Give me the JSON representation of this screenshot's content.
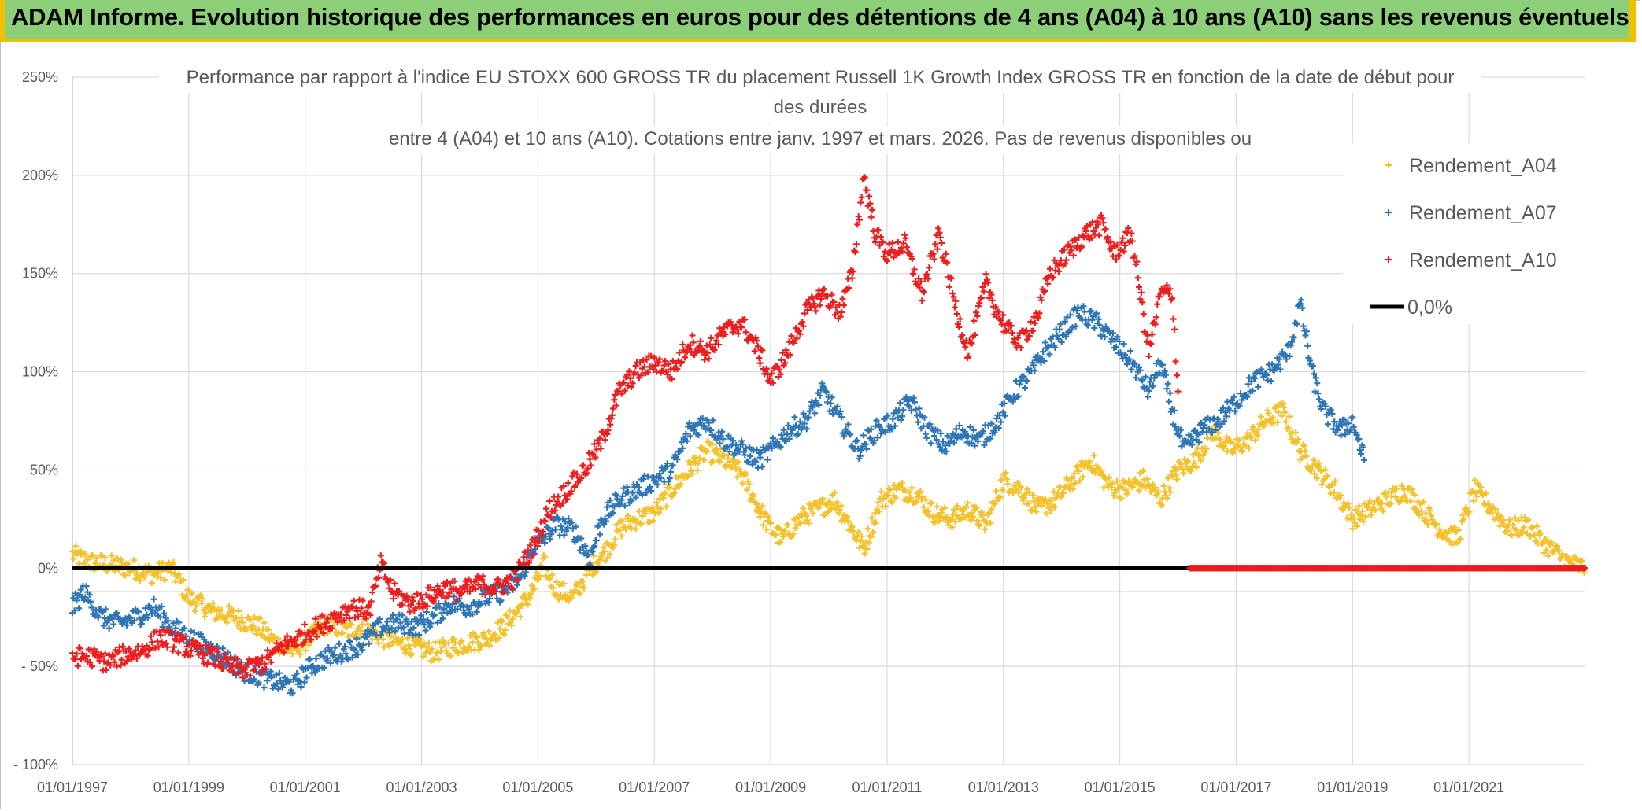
{
  "banner": {
    "title": "ADAM Informe. Evolution historique des performances en euros pour des détentions de 4 ans (A04) à 10 ans (A10) sans les revenus éventuels"
  },
  "chart_data": {
    "type": "scatter",
    "title_lines": [
      "Performance par rapport à l'indice EU STOXX 600 GROSS TR  du placement Russell 1K Growth Index GROSS TR en fonction de la date de début pour",
      "des durées",
      "entre 4 (A04) et 10 ans (A10). Cotations entre janv. 1997 et mars. 2026. Pas de revenus disponibles ou"
    ],
    "xlabel": "",
    "ylabel": "",
    "xlim": [
      1997.0,
      2023.0
    ],
    "ylim": [
      -100,
      250
    ],
    "x_tick_labels": [
      "01/01/1997",
      "01/01/1999",
      "01/01/2001",
      "01/01/2003",
      "01/01/2005",
      "01/01/2007",
      "01/01/2009",
      "01/01/2011",
      "01/01/2013",
      "01/01/2015",
      "01/01/2017",
      "01/01/2019",
      "01/01/2021"
    ],
    "x_tick_values": [
      1997,
      1999,
      2001,
      2003,
      2005,
      2007,
      2009,
      2011,
      2013,
      2015,
      2017,
      2019,
      2021
    ],
    "y_tick_labels": [
      "250%",
      "200%",
      "150%",
      "100%",
      "50%",
      "0%",
      "- 50%",
      "- 100%"
    ],
    "y_tick_values": [
      250,
      200,
      150,
      100,
      50,
      0,
      -50,
      -100
    ],
    "legend": {
      "position": "right",
      "entries": [
        "Rendement_A04",
        "Rendement_A07",
        "Rendement_A10",
        "0,0%"
      ]
    },
    "series": [
      {
        "name": "Rendement_A04",
        "color": "#f5c12a",
        "marker": "+",
        "x": [
          1997.0,
          1997.3,
          1997.6,
          1998.0,
          1998.4,
          1998.7,
          1999.0,
          1999.4,
          1999.8,
          2000.2,
          2000.5,
          2000.8,
          2001.1,
          2001.4,
          2001.7,
          2002.0,
          2002.3,
          2002.6,
          2002.9,
          2003.2,
          2003.5,
          2003.8,
          2004.1,
          2004.4,
          2004.7,
          2004.9,
          2005.1,
          2005.3,
          2005.6,
          2005.9,
          2006.2,
          2006.4,
          2006.7,
          2007.0,
          2007.3,
          2007.6,
          2007.9,
          2008.2,
          2008.5,
          2008.8,
          2009.0,
          2009.2,
          2009.5,
          2009.8,
          2010.1,
          2010.4,
          2010.6,
          2010.9,
          2011.2,
          2011.5,
          2011.8,
          2012.1,
          2012.4,
          2012.7,
          2013.0,
          2013.3,
          2013.6,
          2013.9,
          2014.2,
          2014.5,
          2014.8,
          2015.1,
          2015.4,
          2015.7,
          2016.0,
          2016.3,
          2016.6,
          2016.9,
          2017.2,
          2017.5,
          2017.8,
          2018.1,
          2018.4,
          2018.7,
          2019.0,
          2019.3,
          2019.6,
          2019.9,
          2020.2,
          2020.5,
          2020.8,
          2021.1,
          2021.4,
          2021.7,
          2022.0,
          2022.2,
          2022.4,
          2022.7,
          2023.0
        ],
        "y": [
          7,
          3,
          2,
          0,
          -3,
          0,
          -15,
          -22,
          -25,
          -30,
          -38,
          -42,
          -35,
          -28,
          -32,
          -30,
          -35,
          -38,
          -40,
          -43,
          -40,
          -38,
          -36,
          -30,
          -20,
          -12,
          2,
          -10,
          -15,
          0,
          10,
          20,
          25,
          28,
          40,
          50,
          60,
          55,
          48,
          30,
          20,
          15,
          25,
          30,
          35,
          20,
          10,
          35,
          40,
          38,
          28,
          25,
          30,
          22,
          45,
          40,
          30,
          35,
          45,
          55,
          42,
          40,
          45,
          35,
          50,
          55,
          70,
          60,
          65,
          75,
          80,
          60,
          50,
          40,
          25,
          30,
          35,
          40,
          30,
          20,
          15,
          40,
          30,
          20,
          22,
          15,
          10,
          3,
          0
        ]
      },
      {
        "name": "Rendement_A07",
        "color": "#2e75b6",
        "marker": "+",
        "x": [
          1997.0,
          1997.2,
          1997.5,
          1997.8,
          1998.1,
          1998.4,
          1998.7,
          1999.0,
          1999.3,
          1999.6,
          1999.9,
          2000.2,
          2000.5,
          2000.8,
          2001.1,
          2001.4,
          2001.7,
          2002.0,
          2002.3,
          2002.6,
          2002.9,
          2003.2,
          2003.5,
          2003.8,
          2004.1,
          2004.4,
          2004.7,
          2004.9,
          2005.1,
          2005.3,
          2005.6,
          2005.9,
          2006.1,
          2006.4,
          2006.7,
          2007.0,
          2007.3,
          2007.6,
          2007.9,
          2008.2,
          2008.5,
          2008.8,
          2009.0,
          2009.3,
          2009.6,
          2009.9,
          2010.2,
          2010.5,
          2010.8,
          2011.1,
          2011.4,
          2011.7,
          2012.0,
          2012.3,
          2012.6,
          2012.9,
          2013.2,
          2013.5,
          2013.7,
          2014.0,
          2014.3,
          2014.6,
          2014.9,
          2015.2,
          2015.5,
          2015.7,
          2015.9,
          2016.1,
          2016.4,
          2016.7,
          2017.0,
          2017.3,
          2017.6,
          2017.9,
          2018.1,
          2018.3,
          2018.5,
          2018.8,
          2019.0,
          2019.2
        ],
        "y": [
          -20,
          -12,
          -25,
          -28,
          -25,
          -20,
          -30,
          -35,
          -40,
          -45,
          -52,
          -55,
          -58,
          -60,
          -50,
          -45,
          -42,
          -38,
          -30,
          -28,
          -30,
          -25,
          -18,
          -20,
          -15,
          -12,
          -5,
          10,
          15,
          22,
          20,
          5,
          25,
          35,
          40,
          45,
          50,
          70,
          75,
          65,
          60,
          55,
          60,
          70,
          75,
          90,
          75,
          60,
          70,
          75,
          85,
          70,
          62,
          70,
          65,
          75,
          90,
          100,
          110,
          120,
          130,
          125,
          115,
          105,
          90,
          105,
          80,
          60,
          70,
          75,
          85,
          95,
          100,
          110,
          135,
          100,
          80,
          70,
          75,
          55
        ]
      },
      {
        "name": "Rendement_A10",
        "color": "#ee1c1c",
        "marker": "+",
        "x": [
          1997.0,
          1997.3,
          1997.6,
          1997.9,
          1998.2,
          1998.5,
          1998.8,
          1999.1,
          1999.4,
          1999.7,
          2000.0,
          2000.3,
          2000.6,
          2000.9,
          2001.2,
          2001.5,
          2001.8,
          2002.1,
          2002.3,
          2002.5,
          2002.8,
          2003.1,
          2003.4,
          2003.7,
          2004.0,
          2004.3,
          2004.6,
          2004.9,
          2005.2,
          2005.5,
          2005.8,
          2006.1,
          2006.4,
          2006.7,
          2007.0,
          2007.3,
          2007.6,
          2007.9,
          2008.2,
          2008.5,
          2008.8,
          2009.0,
          2009.3,
          2009.6,
          2009.9,
          2010.2,
          2010.4,
          2010.6,
          2010.8,
          2011.0,
          2011.3,
          2011.6,
          2011.9,
          2012.2,
          2012.4,
          2012.7,
          2012.9,
          2013.1,
          2013.3,
          2013.6,
          2013.8,
          2014.1,
          2014.4,
          2014.7,
          2014.9,
          2015.2,
          2015.5,
          2015.7,
          2015.9,
          2016.0
        ],
        "y": [
          -45,
          -45,
          -48,
          -44,
          -42,
          -35,
          -38,
          -42,
          -45,
          -50,
          -52,
          -48,
          -40,
          -35,
          -30,
          -25,
          -20,
          -22,
          2,
          -12,
          -18,
          -15,
          -10,
          -12,
          -8,
          -10,
          -5,
          10,
          30,
          40,
          50,
          65,
          90,
          100,
          105,
          100,
          115,
          110,
          120,
          125,
          110,
          95,
          110,
          130,
          140,
          130,
          150,
          200,
          170,
          160,
          165,
          140,
          170,
          130,
          110,
          145,
          130,
          120,
          115,
          130,
          150,
          160,
          170,
          175,
          160,
          170,
          110,
          140,
          140,
          90
        ]
      },
      {
        "name": "Rendement_A10 (0%)",
        "color": "#ee1c1c",
        "marker": "+",
        "x": [
          2016.2,
          2023.0
        ],
        "y": [
          0,
          0
        ]
      }
    ],
    "reference_line": {
      "name": "0,0%",
      "value": 0,
      "color": "#000000"
    }
  }
}
